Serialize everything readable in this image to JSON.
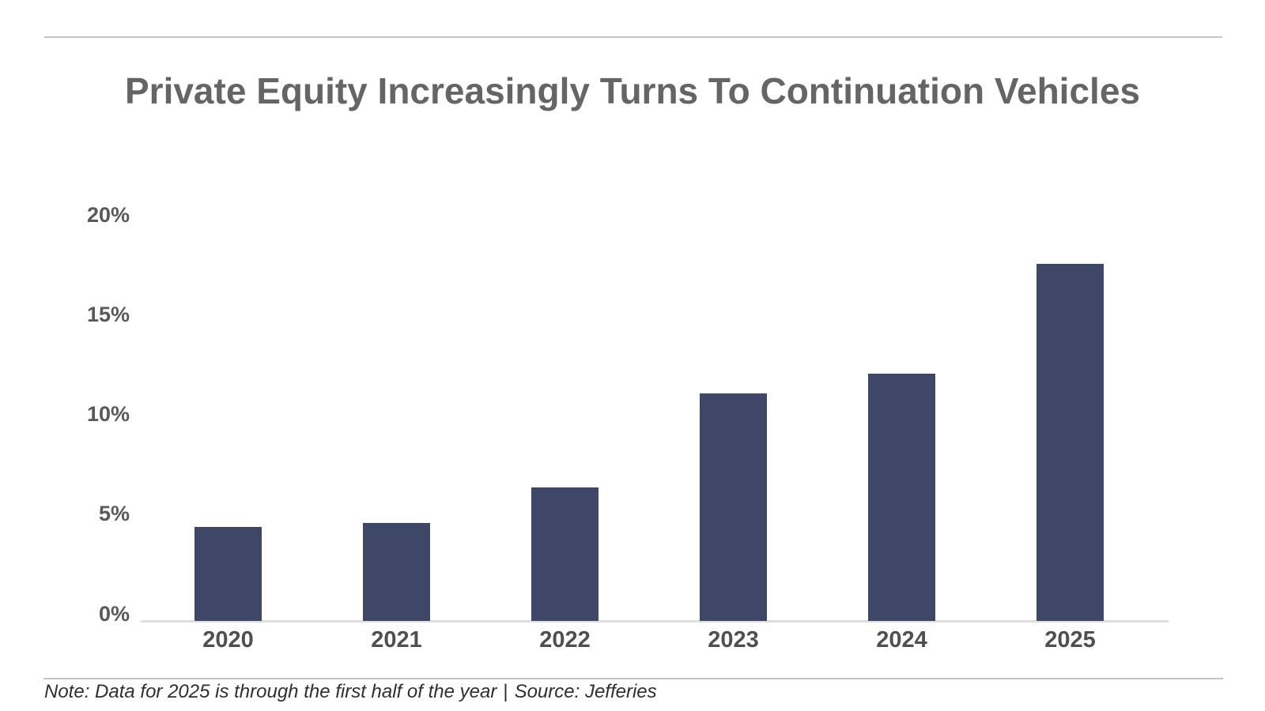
{
  "page": {
    "title": "Private Equity Increasingly Turns To Continuation Vehicles",
    "note_text": "Note: Data for 2025 is through the first half of the year",
    "note_separator": "|",
    "source_text": "Source: Jefferies"
  },
  "colors": {
    "bar": "#3f4769",
    "title": "#656565",
    "tick_label": "#595959",
    "x_label": "#4f4f4f",
    "axis_line": "#dedede",
    "divider": "#c4c4c4",
    "note": "#2f2f2f",
    "background": "#ffffff"
  },
  "chart_data": {
    "type": "bar",
    "title": "Private Equity Increasingly Turns To Continuation Vehicles",
    "categories": [
      "2020",
      "2021",
      "2022",
      "2023",
      "2024",
      "2025"
    ],
    "values": [
      4.7,
      4.9,
      6.7,
      11.4,
      12.4,
      17.9
    ],
    "unit": "%",
    "xlabel": "",
    "ylabel": "",
    "y_tick_labels": [
      "0%",
      "5%",
      "10%",
      "15%",
      "20%"
    ],
    "y_tick_values": [
      0,
      5,
      10,
      15,
      20
    ],
    "ylim": [
      0,
      20
    ],
    "gridlines": false,
    "legend": false,
    "bar_color": "#3f4769",
    "note": "Note: Data for 2025 is through the first half of the year | Source: Jefferies",
    "source": "Jefferies"
  }
}
